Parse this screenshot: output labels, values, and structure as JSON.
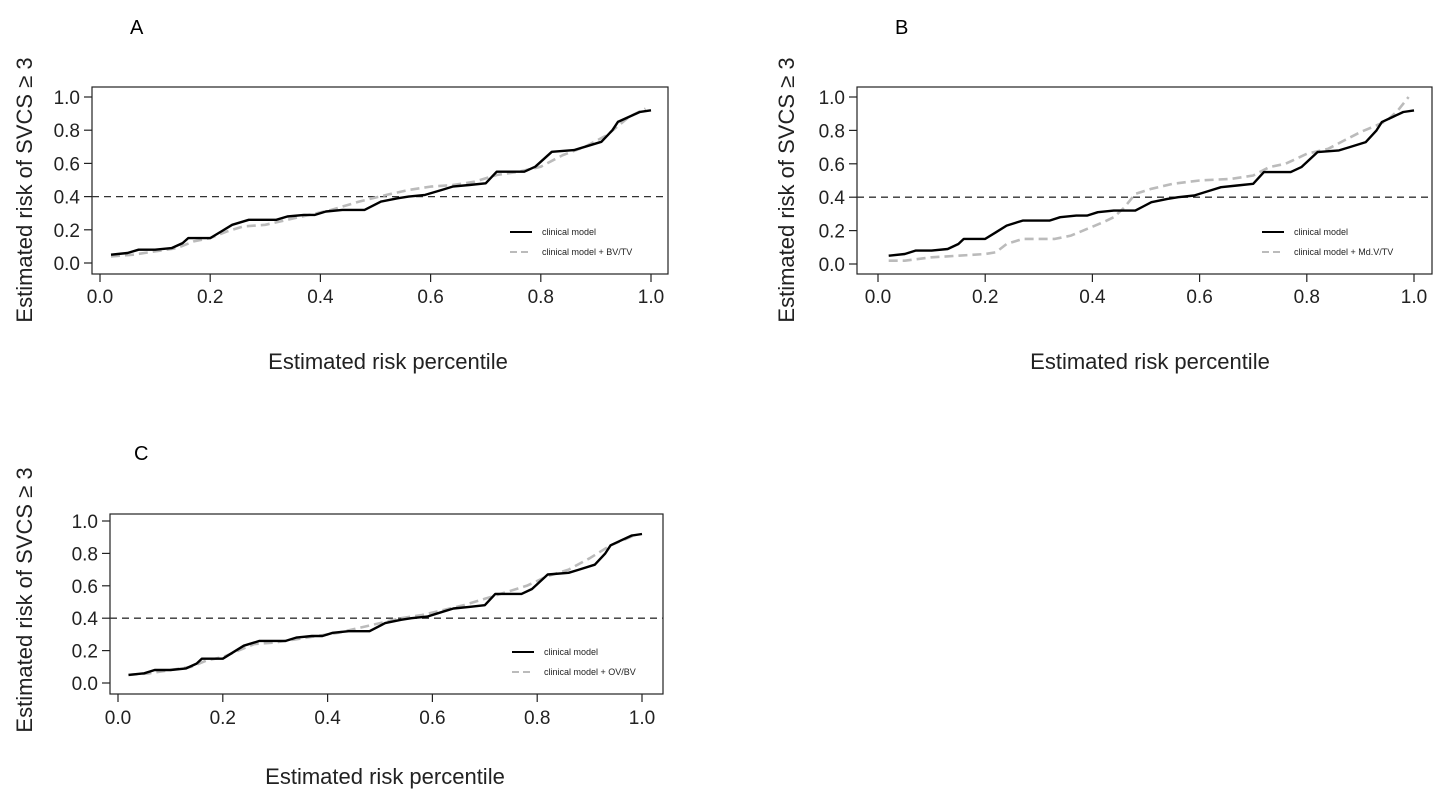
{
  "chart_data": [
    {
      "panel": "A",
      "type": "line",
      "xlabel": "Estimated risk percentile",
      "ylabel": "Estimated risk of SVCS ≥ 3",
      "xlim": [
        0,
        1
      ],
      "ylim": [
        0,
        1
      ],
      "xticks": [
        "0.0",
        "0.2",
        "0.4",
        "0.6",
        "0.8",
        "1.0"
      ],
      "yticks": [
        "0.0",
        "0.2",
        "0.4",
        "0.6",
        "0.8",
        "1.0"
      ],
      "reference_line": {
        "y": 0.4,
        "style": "dashed"
      },
      "legend_position": "bottom-right",
      "series": [
        {
          "name": "clinical model",
          "style": "solid",
          "color": "#000000",
          "points": [
            [
              0.02,
              0.05
            ],
            [
              0.05,
              0.06
            ],
            [
              0.07,
              0.08
            ],
            [
              0.1,
              0.08
            ],
            [
              0.13,
              0.09
            ],
            [
              0.15,
              0.12
            ],
            [
              0.16,
              0.15
            ],
            [
              0.2,
              0.15
            ],
            [
              0.22,
              0.19
            ],
            [
              0.24,
              0.23
            ],
            [
              0.27,
              0.26
            ],
            [
              0.32,
              0.26
            ],
            [
              0.34,
              0.28
            ],
            [
              0.37,
              0.29
            ],
            [
              0.39,
              0.29
            ],
            [
              0.41,
              0.31
            ],
            [
              0.44,
              0.32
            ],
            [
              0.48,
              0.32
            ],
            [
              0.51,
              0.37
            ],
            [
              0.54,
              0.39
            ],
            [
              0.56,
              0.4
            ],
            [
              0.59,
              0.41
            ],
            [
              0.62,
              0.44
            ],
            [
              0.64,
              0.46
            ],
            [
              0.67,
              0.47
            ],
            [
              0.7,
              0.48
            ],
            [
              0.72,
              0.55
            ],
            [
              0.77,
              0.55
            ],
            [
              0.79,
              0.58
            ],
            [
              0.82,
              0.67
            ],
            [
              0.86,
              0.68
            ],
            [
              0.88,
              0.7
            ],
            [
              0.91,
              0.73
            ],
            [
              0.93,
              0.8
            ],
            [
              0.94,
              0.85
            ],
            [
              0.96,
              0.88
            ],
            [
              0.98,
              0.91
            ],
            [
              1.0,
              0.92
            ]
          ]
        },
        {
          "name": "clinical model + BV/TV",
          "style": "dashed",
          "color": "#bbbbbb",
          "points": [
            [
              0.02,
              0.04
            ],
            [
              0.06,
              0.05
            ],
            [
              0.1,
              0.07
            ],
            [
              0.14,
              0.09
            ],
            [
              0.17,
              0.13
            ],
            [
              0.2,
              0.15
            ],
            [
              0.23,
              0.19
            ],
            [
              0.26,
              0.22
            ],
            [
              0.3,
              0.23
            ],
            [
              0.34,
              0.26
            ],
            [
              0.38,
              0.29
            ],
            [
              0.42,
              0.32
            ],
            [
              0.47,
              0.37
            ],
            [
              0.52,
              0.41
            ],
            [
              0.56,
              0.44
            ],
            [
              0.6,
              0.46
            ],
            [
              0.64,
              0.47
            ],
            [
              0.68,
              0.49
            ],
            [
              0.72,
              0.53
            ],
            [
              0.76,
              0.55
            ],
            [
              0.8,
              0.58
            ],
            [
              0.84,
              0.65
            ],
            [
              0.88,
              0.7
            ],
            [
              0.92,
              0.77
            ],
            [
              0.96,
              0.88
            ],
            [
              0.99,
              0.93
            ]
          ]
        }
      ]
    },
    {
      "panel": "B",
      "type": "line",
      "xlabel": "Estimated risk percentile",
      "ylabel": "Estimated risk of SVCS ≥ 3",
      "xlim": [
        0,
        1
      ],
      "ylim": [
        0,
        1
      ],
      "xticks": [
        "0.0",
        "0.2",
        "0.4",
        "0.6",
        "0.8",
        "1.0"
      ],
      "yticks": [
        "0.0",
        "0.2",
        "0.4",
        "0.6",
        "0.8",
        "1.0"
      ],
      "reference_line": {
        "y": 0.4,
        "style": "dashed"
      },
      "legend_position": "bottom-right",
      "series": [
        {
          "name": "clinical model",
          "style": "solid",
          "color": "#000000",
          "points": [
            [
              0.02,
              0.05
            ],
            [
              0.05,
              0.06
            ],
            [
              0.07,
              0.08
            ],
            [
              0.1,
              0.08
            ],
            [
              0.13,
              0.09
            ],
            [
              0.15,
              0.12
            ],
            [
              0.16,
              0.15
            ],
            [
              0.2,
              0.15
            ],
            [
              0.22,
              0.19
            ],
            [
              0.24,
              0.23
            ],
            [
              0.27,
              0.26
            ],
            [
              0.32,
              0.26
            ],
            [
              0.34,
              0.28
            ],
            [
              0.37,
              0.29
            ],
            [
              0.39,
              0.29
            ],
            [
              0.41,
              0.31
            ],
            [
              0.44,
              0.32
            ],
            [
              0.48,
              0.32
            ],
            [
              0.51,
              0.37
            ],
            [
              0.54,
              0.39
            ],
            [
              0.56,
              0.4
            ],
            [
              0.59,
              0.41
            ],
            [
              0.62,
              0.44
            ],
            [
              0.64,
              0.46
            ],
            [
              0.67,
              0.47
            ],
            [
              0.7,
              0.48
            ],
            [
              0.72,
              0.55
            ],
            [
              0.77,
              0.55
            ],
            [
              0.79,
              0.58
            ],
            [
              0.82,
              0.67
            ],
            [
              0.86,
              0.68
            ],
            [
              0.88,
              0.7
            ],
            [
              0.91,
              0.73
            ],
            [
              0.93,
              0.8
            ],
            [
              0.94,
              0.85
            ],
            [
              0.96,
              0.88
            ],
            [
              0.98,
              0.91
            ],
            [
              1.0,
              0.92
            ]
          ]
        },
        {
          "name": "clinical model + Md.V/TV",
          "style": "dashed",
          "color": "#bbbbbb",
          "points": [
            [
              0.02,
              0.02
            ],
            [
              0.05,
              0.02
            ],
            [
              0.1,
              0.04
            ],
            [
              0.15,
              0.05
            ],
            [
              0.2,
              0.06
            ],
            [
              0.22,
              0.07
            ],
            [
              0.24,
              0.12
            ],
            [
              0.27,
              0.15
            ],
            [
              0.33,
              0.15
            ],
            [
              0.36,
              0.17
            ],
            [
              0.39,
              0.21
            ],
            [
              0.42,
              0.25
            ],
            [
              0.44,
              0.28
            ],
            [
              0.46,
              0.34
            ],
            [
              0.48,
              0.42
            ],
            [
              0.51,
              0.45
            ],
            [
              0.55,
              0.48
            ],
            [
              0.6,
              0.5
            ],
            [
              0.66,
              0.51
            ],
            [
              0.7,
              0.53
            ],
            [
              0.73,
              0.58
            ],
            [
              0.76,
              0.6
            ],
            [
              0.78,
              0.63
            ],
            [
              0.8,
              0.66
            ],
            [
              0.84,
              0.69
            ],
            [
              0.87,
              0.74
            ],
            [
              0.9,
              0.79
            ],
            [
              0.93,
              0.83
            ],
            [
              0.95,
              0.86
            ],
            [
              0.97,
              0.92
            ],
            [
              0.99,
              1.0
            ]
          ]
        }
      ]
    },
    {
      "panel": "C",
      "type": "line",
      "xlabel": "Estimated risk percentile",
      "ylabel": "Estimated risk of SVCS ≥ 3",
      "xlim": [
        0,
        1
      ],
      "ylim": [
        0,
        1
      ],
      "xticks": [
        "0.0",
        "0.2",
        "0.4",
        "0.6",
        "0.8",
        "1.0"
      ],
      "yticks": [
        "0.0",
        "0.2",
        "0.4",
        "0.6",
        "0.8",
        "1.0"
      ],
      "reference_line": {
        "y": 0.4,
        "style": "dashed"
      },
      "legend_position": "bottom-right",
      "series": [
        {
          "name": "clinical model",
          "style": "solid",
          "color": "#000000",
          "points": [
            [
              0.02,
              0.05
            ],
            [
              0.05,
              0.06
            ],
            [
              0.07,
              0.08
            ],
            [
              0.1,
              0.08
            ],
            [
              0.13,
              0.09
            ],
            [
              0.15,
              0.12
            ],
            [
              0.16,
              0.15
            ],
            [
              0.2,
              0.15
            ],
            [
              0.22,
              0.19
            ],
            [
              0.24,
              0.23
            ],
            [
              0.27,
              0.26
            ],
            [
              0.32,
              0.26
            ],
            [
              0.34,
              0.28
            ],
            [
              0.37,
              0.29
            ],
            [
              0.39,
              0.29
            ],
            [
              0.41,
              0.31
            ],
            [
              0.44,
              0.32
            ],
            [
              0.48,
              0.32
            ],
            [
              0.51,
              0.37
            ],
            [
              0.54,
              0.39
            ],
            [
              0.56,
              0.4
            ],
            [
              0.59,
              0.41
            ],
            [
              0.62,
              0.44
            ],
            [
              0.64,
              0.46
            ],
            [
              0.67,
              0.47
            ],
            [
              0.7,
              0.48
            ],
            [
              0.72,
              0.55
            ],
            [
              0.77,
              0.55
            ],
            [
              0.79,
              0.58
            ],
            [
              0.82,
              0.67
            ],
            [
              0.86,
              0.68
            ],
            [
              0.88,
              0.7
            ],
            [
              0.91,
              0.73
            ],
            [
              0.93,
              0.8
            ],
            [
              0.94,
              0.85
            ],
            [
              0.96,
              0.88
            ],
            [
              0.98,
              0.91
            ],
            [
              1.0,
              0.92
            ]
          ]
        },
        {
          "name": "clinical model + OV/BV",
          "style": "dashed",
          "color": "#bbbbbb",
          "points": [
            [
              0.02,
              0.05
            ],
            [
              0.06,
              0.06
            ],
            [
              0.1,
              0.08
            ],
            [
              0.14,
              0.1
            ],
            [
              0.17,
              0.14
            ],
            [
              0.2,
              0.16
            ],
            [
              0.23,
              0.2
            ],
            [
              0.26,
              0.24
            ],
            [
              0.3,
              0.25
            ],
            [
              0.34,
              0.27
            ],
            [
              0.38,
              0.29
            ],
            [
              0.42,
              0.31
            ],
            [
              0.46,
              0.34
            ],
            [
              0.5,
              0.37
            ],
            [
              0.54,
              0.4
            ],
            [
              0.58,
              0.42
            ],
            [
              0.62,
              0.45
            ],
            [
              0.66,
              0.48
            ],
            [
              0.7,
              0.52
            ],
            [
              0.74,
              0.56
            ],
            [
              0.78,
              0.6
            ],
            [
              0.82,
              0.66
            ],
            [
              0.86,
              0.7
            ],
            [
              0.9,
              0.77
            ],
            [
              0.94,
              0.85
            ],
            [
              0.97,
              0.89
            ],
            [
              0.99,
              0.92
            ]
          ]
        }
      ]
    }
  ]
}
